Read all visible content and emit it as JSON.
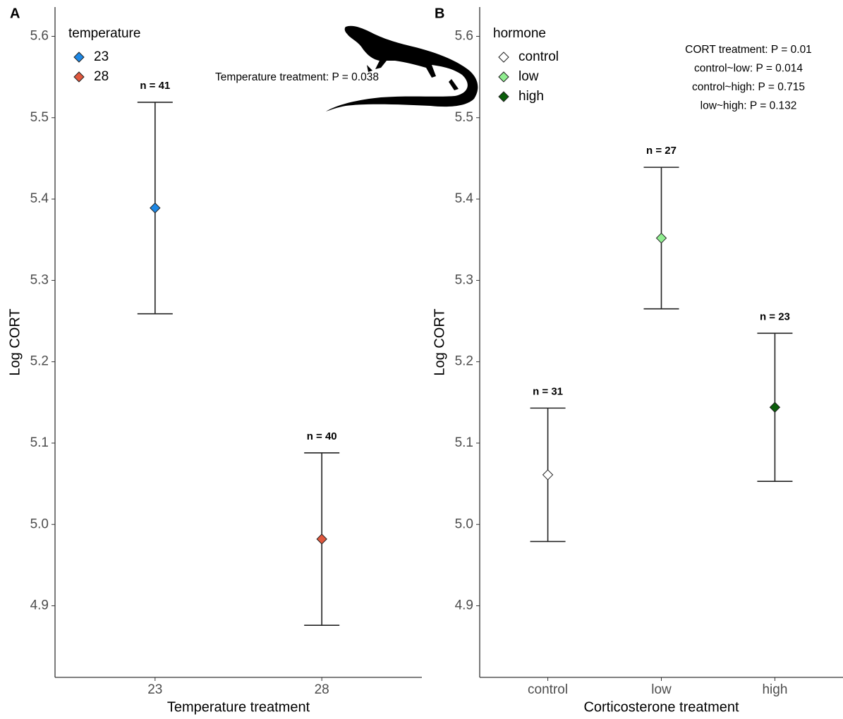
{
  "chart_data": [
    {
      "type": "errorbar",
      "panel_label": "A",
      "ylabel": "Log CORT",
      "xlabel": "Temperature treatment",
      "legend_title": "temperature",
      "categories": [
        "23",
        "28"
      ],
      "values": [
        5.389,
        4.982
      ],
      "errors": [
        0.13,
        0.106
      ],
      "colors": [
        "#1e88e5",
        "#e0583e"
      ],
      "n_labels": [
        "n = 41",
        "n = 40"
      ],
      "annotations": [
        "Temperature treatment: P = 0.038"
      ],
      "ylim": [
        4.812,
        5.636
      ],
      "yticks": [
        4.9,
        {
          "value": 5,
          "label": "5.0"
        },
        5.1,
        5.2,
        5.3,
        5.4,
        5.5,
        5.6
      ]
    },
    {
      "type": "errorbar",
      "panel_label": "B",
      "ylabel": "Log CORT",
      "xlabel": "Corticosterone treatment",
      "legend_title": "hormone",
      "categories": [
        "control",
        "low",
        "high"
      ],
      "values": [
        5.061,
        5.352,
        5.144
      ],
      "errors": [
        0.082,
        0.087,
        0.091
      ],
      "colors": [
        "#ffffff",
        "#90ee90",
        "#0b5e0b"
      ],
      "n_labels": [
        "n = 31",
        "n = 27",
        "n = 23"
      ],
      "annotations": [
        "CORT treatment: P = 0.01",
        "control~low: P = 0.014",
        "control~high: P = 0.715",
        "low~high: P = 0.132"
      ],
      "ylim": [
        4.812,
        5.636
      ],
      "yticks": [
        4.9,
        {
          "value": 5,
          "label": "5.0"
        },
        5.1,
        5.2,
        5.3,
        5.4,
        5.5,
        5.6
      ]
    }
  ]
}
